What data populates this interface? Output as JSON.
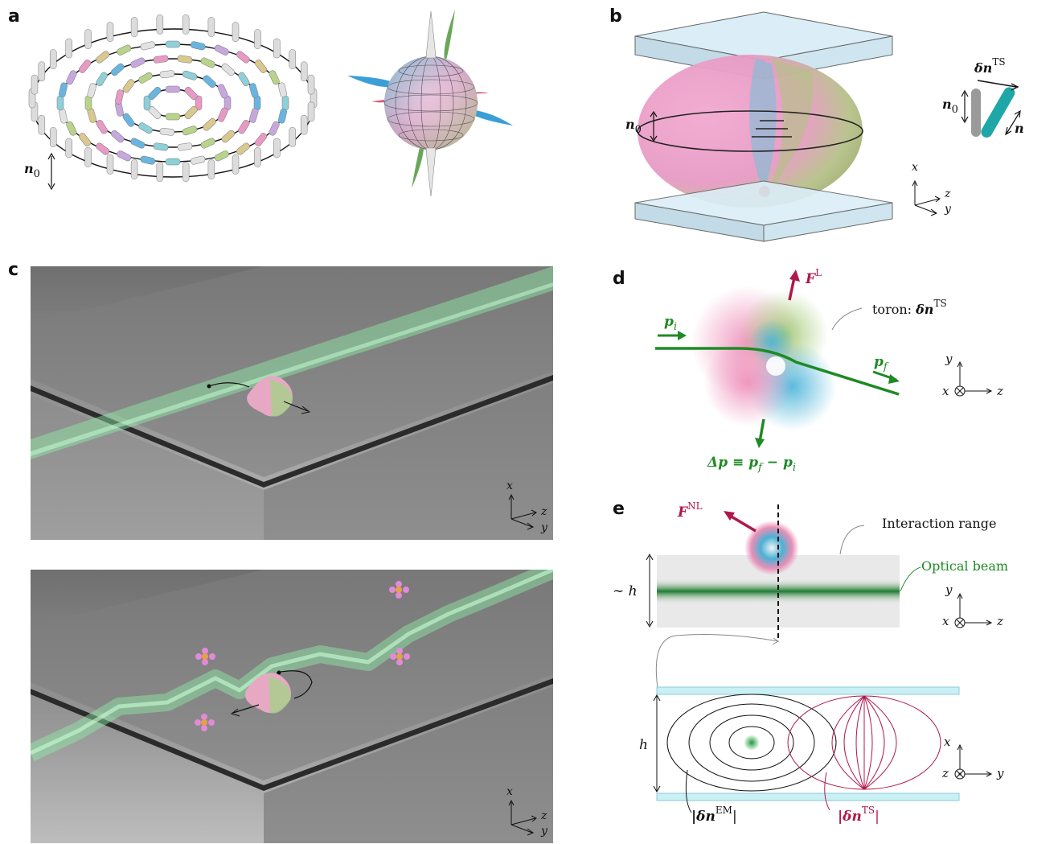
{
  "panels": {
    "a": "a",
    "b": "b",
    "c": "c",
    "d": "d",
    "e": "e"
  },
  "panel_a": {
    "n0_symbol": "n",
    "n0_sub": "0"
  },
  "panel_b": {
    "n0_symbol": "n",
    "n0_sub": "0",
    "dn_symbol": "δn",
    "dn_sup": "TS",
    "n_symbol": "n",
    "axis_x": "x",
    "axis_y": "y",
    "axis_z": "z"
  },
  "panel_c": {
    "top_axis_x": "x",
    "top_axis_y": "y",
    "top_axis_z": "z",
    "bottom_axis_x": "x",
    "bottom_axis_y": "y",
    "bottom_axis_z": "z"
  },
  "panel_d": {
    "force_symbol": "F",
    "force_sup": "L",
    "toron_text": "toron: ",
    "toron_symbol": "δn",
    "toron_sup": "TS",
    "pi_symbol": "p",
    "pi_sub": "i",
    "pf_symbol": "p",
    "pf_sub": "f",
    "dp_text": "Δp ≡ p",
    "dp_sub_f": "f",
    "dp_minus": " − p",
    "dp_sub_i": "i",
    "axis_x": "x",
    "axis_y": "y",
    "axis_z": "z"
  },
  "panel_e": {
    "fnl_symbol": "F",
    "fnl_sup": "NL",
    "interaction_range": "Interaction range",
    "optical_beam": "Optical beam",
    "h_approx": "∼ h",
    "h_label": "h",
    "axis_top_x": "x",
    "axis_top_y": "y",
    "axis_top_z": "z",
    "axis_bottom_x": "x",
    "axis_bottom_y": "y",
    "axis_bottom_z": "z",
    "dn_em": "|δn",
    "dn_em_sup": "EM",
    "dn_em_end": "|",
    "dn_ts": "|δn",
    "dn_ts_sup": "TS",
    "dn_ts_end": "|"
  },
  "colors": {
    "green": "#1e8a24",
    "crimson": "#b0174a",
    "glass": "#dbeef7",
    "beam": "#2e8b3e"
  }
}
